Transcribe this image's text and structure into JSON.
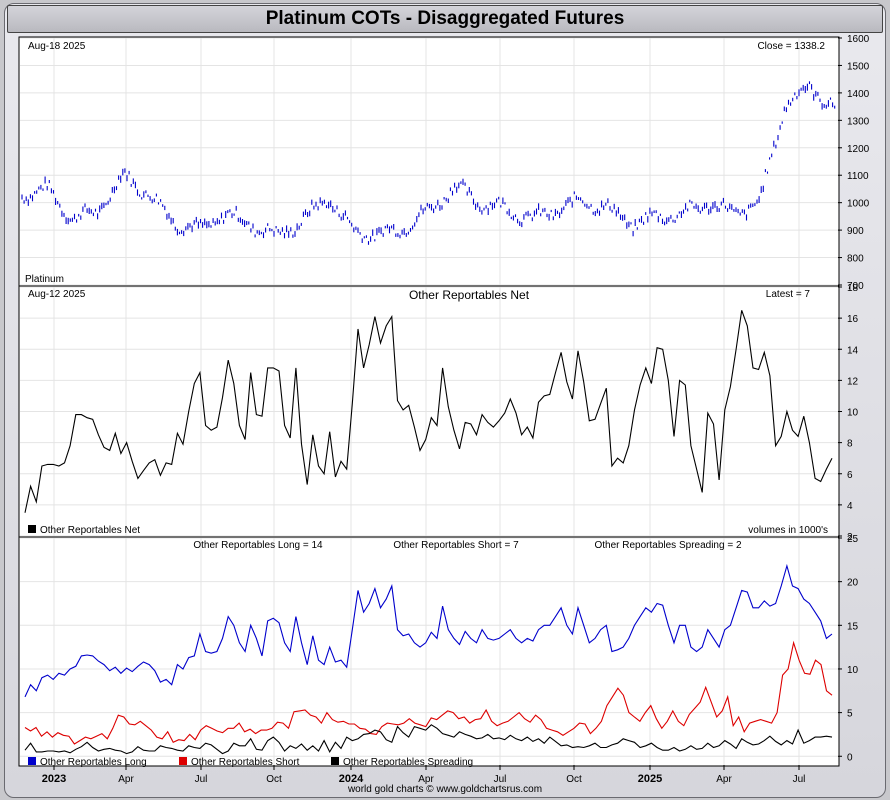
{
  "page": {
    "title": "Platinum COTs - Disaggregated Futures",
    "credit": "world gold charts © www.goldchartsrus.com"
  },
  "chart_data": [
    {
      "type": "line",
      "panel": "price",
      "date_label": "Aug-18  2025",
      "close_label": "Close = 1338.2",
      "series_label": "Platinum",
      "ylim": [
        700,
        1600
      ],
      "yticks": [
        700,
        800,
        900,
        1000,
        1100,
        1200,
        1300,
        1400,
        1500,
        1600
      ],
      "x": [
        "2022-12",
        "2023-01",
        "2023-02",
        "2023-03",
        "2023-04",
        "2023-05",
        "2023-06",
        "2023-07",
        "2023-08",
        "2023-09",
        "2023-10",
        "2023-11",
        "2023-12",
        "2024-01",
        "2024-02",
        "2024-03",
        "2024-04",
        "2024-05",
        "2024-06",
        "2024-07",
        "2024-08",
        "2024-09",
        "2024-10",
        "2024-11",
        "2024-12",
        "2025-01",
        "2025-02",
        "2025-03",
        "2025-04",
        "2025-05",
        "2025-06",
        "2025-07",
        "2025-08"
      ],
      "series": [
        {
          "color": "#0000cc",
          "values": [
            1030,
            1050,
            940,
            970,
            1100,
            1030,
            930,
            900,
            960,
            920,
            880,
            930,
            1020,
            900,
            880,
            910,
            970,
            1060,
            1000,
            980,
            940,
            970,
            1010,
            980,
            920,
            950,
            960,
            1000,
            960,
            1000,
            1360,
            1420,
            1340
          ]
        }
      ],
      "grid": true
    },
    {
      "type": "line",
      "panel": "net",
      "title": "Other Reportables Net",
      "date_label": "Aug-12  2025",
      "latest_label": "Latest = 7",
      "units_label": "volumes in 1000's",
      "ylim": [
        2,
        18
      ],
      "yticks": [
        2,
        4,
        6,
        8,
        10,
        12,
        14,
        16,
        18
      ],
      "series": [
        {
          "name": "Other Reportables Net",
          "color": "#000000",
          "values": [
            3.5,
            5.2,
            4.2,
            6.5,
            6.6,
            6.6,
            6.5,
            6.7,
            7.8,
            9.8,
            9.8,
            9.6,
            9.5,
            8.5,
            7.7,
            7.5,
            8.6,
            7.3,
            8.0,
            6.8,
            5.7,
            6.2,
            6.7,
            6.9,
            5.9,
            6.7,
            6.6,
            8.6,
            7.9,
            10.0,
            11.8,
            12.5,
            9.1,
            8.8,
            9.0,
            10.9,
            13.3,
            11.8,
            9.1,
            8.2,
            12.5,
            9.8,
            9.7,
            12.8,
            12.8,
            12.6,
            9.1,
            8.3,
            12.8,
            7.9,
            5.3,
            8.5,
            6.5,
            6.0,
            8.7,
            5.8,
            6.8,
            6.3,
            10.5,
            15.3,
            12.8,
            14.3,
            16.1,
            14.4,
            15.5,
            16.1,
            10.7,
            10.1,
            10.4,
            9.0,
            7.5,
            8.2,
            9.6,
            9.1,
            12.8,
            10.3,
            8.8,
            7.6,
            9.3,
            9.2,
            8.5,
            9.8,
            9.3,
            9.0,
            9.4,
            9.9,
            10.8,
            9.9,
            8.5,
            9.0,
            8.3,
            10.6,
            11.0,
            11.1,
            12.5,
            13.8,
            11.9,
            10.8,
            13.9,
            11.9,
            9.4,
            9.5,
            10.5,
            11.5,
            6.5,
            7.0,
            6.7,
            7.8,
            10.1,
            11.7,
            12.8,
            11.8,
            14.1,
            14.0,
            12.0,
            8.4,
            12.0,
            11.7,
            7.8,
            6.3,
            4.8,
            9.9,
            9.2,
            5.6,
            10.1,
            11.6,
            14.0,
            16.5,
            15.5,
            12.8,
            12.7,
            13.8,
            12.3,
            7.8,
            8.4,
            10.0,
            8.8,
            8.4,
            9.7,
            8.0,
            5.7,
            5.5,
            6.3,
            7.0
          ]
        }
      ],
      "grid": true
    },
    {
      "type": "line",
      "panel": "components",
      "long_label": "Other Reportables Long = 14",
      "short_label": "Other Reportables Short = 7",
      "spreading_label": "Other Reportables Spreading = 2",
      "ylim": [
        -1,
        25
      ],
      "yticks": [
        0,
        5,
        10,
        15,
        20,
        25
      ],
      "series": [
        {
          "name": "Other Reportables Long",
          "color": "#0000cc",
          "values": [
            6.8,
            8.2,
            7.5,
            9.0,
            9.3,
            8.8,
            9.5,
            9.3,
            10.0,
            10.3,
            11.5,
            11.6,
            11.5,
            10.9,
            10.5,
            9.8,
            10.2,
            9.5,
            10.1,
            9.7,
            10.3,
            10.8,
            10.5,
            9.8,
            8.5,
            8.8,
            8.2,
            10.5,
            10.0,
            11.3,
            11.5,
            14.0,
            12.0,
            11.8,
            12.0,
            13.5,
            16.0,
            15.0,
            13.0,
            12.0,
            15.0,
            13.5,
            11.5,
            15.5,
            15.8,
            15.3,
            13.0,
            12.0,
            16.0,
            13.0,
            10.5,
            13.8,
            11.0,
            10.5,
            12.5,
            10.8,
            11.0,
            10.2,
            14.5,
            19.0,
            16.5,
            17.5,
            19.2,
            17.0,
            18.0,
            19.5,
            14.5,
            13.8,
            14.0,
            13.0,
            12.5,
            13.0,
            14.2,
            13.5,
            17.2,
            14.5,
            13.5,
            12.8,
            14.3,
            13.5,
            13.0,
            14.5,
            13.5,
            13.3,
            13.5,
            14.0,
            14.5,
            13.5,
            13.0,
            13.5,
            13.2,
            14.5,
            15.0,
            15.0,
            16.0,
            17.0,
            15.0,
            14.0,
            17.0,
            15.0,
            13.0,
            13.5,
            14.5,
            15.0,
            12.0,
            12.2,
            12.5,
            13.5,
            15.0,
            16.0,
            17.0,
            16.5,
            17.5,
            17.3,
            15.0,
            13.0,
            15.0,
            15.0,
            12.5,
            12.0,
            12.5,
            14.5,
            13.5,
            12.5,
            14.5,
            15.0,
            17.0,
            19.0,
            18.8,
            17.0,
            17.0,
            17.8,
            17.2,
            17.5,
            19.5,
            21.8,
            19.5,
            19.2,
            18.0,
            17.5,
            16.5,
            15.5,
            13.5,
            14.0
          ]
        },
        {
          "name": "Other Reportables Short",
          "color": "#dd0000",
          "values": [
            3.3,
            2.9,
            3.3,
            2.3,
            2.8,
            2.2,
            2.7,
            2.4,
            2.3,
            1.4,
            1.8,
            2.2,
            2.0,
            2.3,
            2.6,
            2.0,
            3.2,
            4.7,
            4.5,
            3.7,
            3.6,
            4.0,
            3.5,
            3.0,
            2.2,
            2.0,
            2.8,
            1.6,
            1.9,
            1.8,
            2.5,
            1.9,
            3.0,
            3.5,
            3.2,
            2.9,
            2.7,
            3.2,
            3.2,
            3.8,
            2.8,
            3.1,
            2.6,
            3.0,
            3.0,
            3.2,
            3.9,
            3.8,
            3.2,
            5.1,
            5.2,
            5.3,
            4.7,
            4.5,
            3.8,
            5.0,
            4.2,
            3.9,
            4.0,
            3.7,
            3.7,
            3.2,
            3.1,
            2.6,
            2.5,
            3.4,
            3.8,
            3.7,
            3.6,
            3.8,
            4.3,
            3.8,
            3.6,
            3.4,
            4.4,
            4.2,
            4.7,
            5.2,
            5.0,
            4.3,
            4.5,
            3.8,
            4.2,
            4.3,
            5.3,
            4.0,
            3.5,
            3.8,
            4.0,
            4.5,
            5.0,
            4.3,
            3.9,
            4.7,
            4.2,
            3.2,
            3.0,
            2.8,
            2.4,
            2.8,
            3.2,
            3.8,
            3.7,
            2.6,
            3.2,
            4.0,
            5.8,
            6.8,
            7.8,
            7.0,
            5.0,
            4.5,
            4.0,
            5.0,
            5.8,
            4.3,
            3.2,
            4.0,
            5.2,
            4.0,
            3.5,
            4.8,
            5.5,
            6.2,
            7.9,
            6.2,
            4.5,
            5.2,
            6.8,
            3.5,
            4.5,
            2.8,
            3.8,
            4.0,
            4.2,
            4.0,
            3.8,
            5.0,
            9.3,
            10.0,
            13.0,
            11.0,
            9.5,
            9.4,
            11.0,
            10.5,
            7.5,
            7.0
          ]
        },
        {
          "name": "Other Reportables Spreading",
          "color": "#000000",
          "values": [
            0.7,
            1.5,
            0.5,
            0.5,
            0.6,
            0.6,
            0.5,
            0.6,
            0.4,
            0.8,
            1.1,
            1.6,
            1.0,
            0.6,
            0.8,
            0.9,
            0.7,
            0.6,
            0.3,
            0.5,
            1.1,
            0.7,
            0.6,
            0.6,
            1.2,
            1.0,
            0.9,
            0.7,
            0.6,
            1.2,
            1.0,
            0.9,
            1.5,
            1.3,
            0.8,
            0.3,
            0.6,
            1.5,
            1.2,
            1.2,
            2.0,
            0.8,
            0.7,
            1.8,
            2.2,
            1.6,
            0.6,
            1.2,
            0.9,
            1.4,
            0.7,
            1.2,
            0.6,
            1.8,
            0.5,
            1.6,
            0.9,
            2.2,
            1.8,
            2.0,
            2.5,
            2.6,
            3.0,
            2.8,
            1.9,
            1.6,
            3.4,
            2.7,
            2.2,
            3.4,
            3.2,
            3.0,
            3.6,
            3.2,
            2.6,
            2.4,
            2.2,
            2.8,
            2.5,
            2.3,
            2.0,
            2.1,
            2.5,
            2.0,
            2.1,
            1.9,
            2.4,
            2.0,
            1.8,
            2.2,
            1.7,
            2.0,
            1.5,
            2.2,
            1.7,
            1.2,
            1.3,
            1.0,
            1.1,
            1.0,
            1.2,
            1.5,
            1.0,
            1.0,
            1.3,
            1.5,
            2.0,
            1.8,
            1.6,
            1.0,
            1.2,
            1.5,
            1.0,
            0.7,
            0.7,
            1.0,
            0.6,
            0.8,
            1.2,
            0.8,
            0.9,
            1.5,
            1.0,
            1.2,
            1.8,
            1.4,
            0.9,
            2.0,
            1.6,
            1.3,
            1.4,
            1.8,
            2.3,
            1.7,
            1.3,
            1.8,
            1.4,
            3.0,
            1.5,
            1.8,
            2.2,
            2.2,
            2.3,
            2.2
          ]
        }
      ],
      "grid": true
    }
  ],
  "x_axis": {
    "months": [
      {
        "label": "2023",
        "year": true
      },
      {
        "label": "Apr",
        "year": false
      },
      {
        "label": "Jul",
        "year": false
      },
      {
        "label": "Oct",
        "year": false
      },
      {
        "label": "2024",
        "year": true
      },
      {
        "label": "Apr",
        "year": false
      },
      {
        "label": "Jul",
        "year": false
      },
      {
        "label": "Oct",
        "year": false
      },
      {
        "label": "2025",
        "year": true
      },
      {
        "label": "Apr",
        "year": false
      },
      {
        "label": "Jul",
        "year": false
      }
    ]
  }
}
